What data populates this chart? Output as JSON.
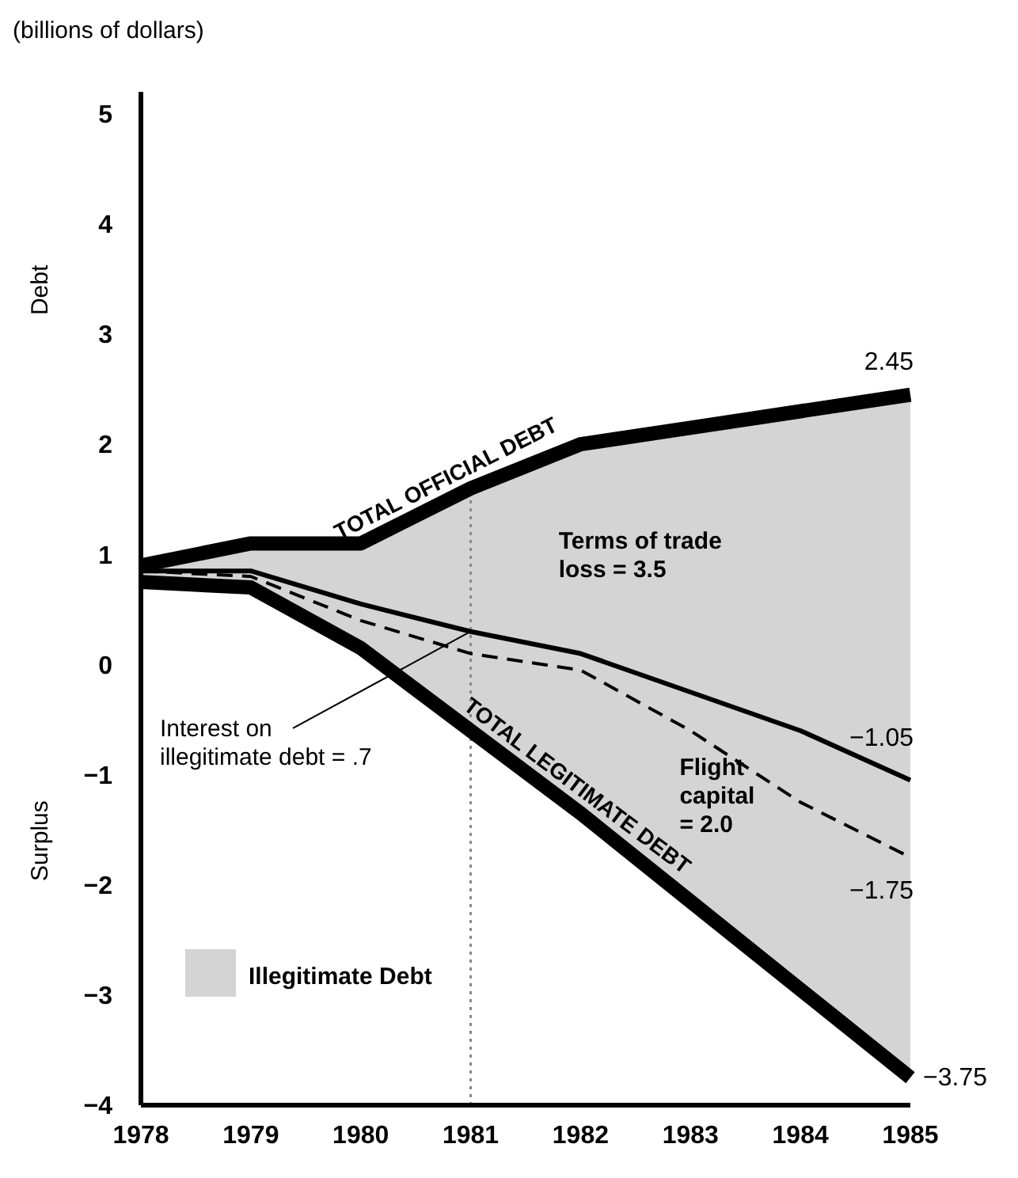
{
  "chart_data": {
    "type": "line",
    "subtitle": "(billions of dollars)",
    "x": [
      1978,
      1979,
      1980,
      1981,
      1982,
      1983,
      1984,
      1985
    ],
    "xlim": [
      1978,
      1985
    ],
    "xticks": [
      1978,
      1979,
      1980,
      1981,
      1982,
      1983,
      1984,
      1985
    ],
    "ylim": [
      -4,
      5.2
    ],
    "yticks": [
      {
        "value": -4,
        "label": "−4"
      },
      {
        "value": -3,
        "label": "−3"
      },
      {
        "value": -2,
        "label": "−2"
      },
      {
        "value": -1,
        "label": "−1"
      },
      0,
      1,
      2,
      3,
      4,
      5
    ],
    "series": [
      {
        "name": "TOTAL OFFICIAL DEBT",
        "color": "#000000",
        "values": [
          0.9,
          1.1,
          1.1,
          1.6,
          2.0,
          2.15,
          2.3,
          2.45
        ],
        "lower": [
          0.75,
          0.7,
          0.15,
          -0.6,
          -1.35,
          -2.15,
          -2.95,
          -3.75
        ],
        "upper": [
          0.9,
          1.1,
          1.1,
          1.6,
          2.0,
          2.15,
          2.3,
          2.45
        ],
        "value_labels": [
          null,
          null,
          null,
          null,
          null,
          null,
          null,
          "2.45"
        ]
      },
      {
        "color": "#000000",
        "values": [
          0.85,
          0.85,
          0.55,
          0.3,
          0.1,
          -0.25,
          -0.6,
          -1.05
        ],
        "value_labels": [
          null,
          null,
          null,
          null,
          null,
          null,
          null,
          "−1.05"
        ]
      },
      {
        "color": "#000000",
        "line_style": "dashed",
        "values": [
          0.85,
          0.8,
          0.4,
          0.1,
          -0.05,
          -0.6,
          -1.25,
          -1.75
        ],
        "value_labels": [
          null,
          null,
          null,
          null,
          null,
          null,
          null,
          "−1.75"
        ]
      },
      {
        "name": "TOTAL LEGITIMATE DEBT",
        "color": "#000000",
        "values": [
          0.75,
          0.7,
          0.15,
          -0.6,
          -1.35,
          -2.15,
          -2.95,
          -3.75
        ],
        "value_labels": [
          null,
          null,
          null,
          null,
          null,
          null,
          null,
          "−3.75"
        ]
      }
    ],
    "ref_lines": [
      {
        "axis": "x",
        "value": 1981,
        "color": "#888888",
        "line_style": "dotted"
      }
    ],
    "annotations": [
      "Debt",
      "Surplus",
      "Terms of trade\nloss = 3.5",
      "Flight\ncapital\n= 2.0",
      "Illegitimate Debt",
      {
        "text": "Interest on\nillegitimate debt = .7",
        "x": 1981,
        "y": 0.3
      }
    ],
    "grid": false
  }
}
